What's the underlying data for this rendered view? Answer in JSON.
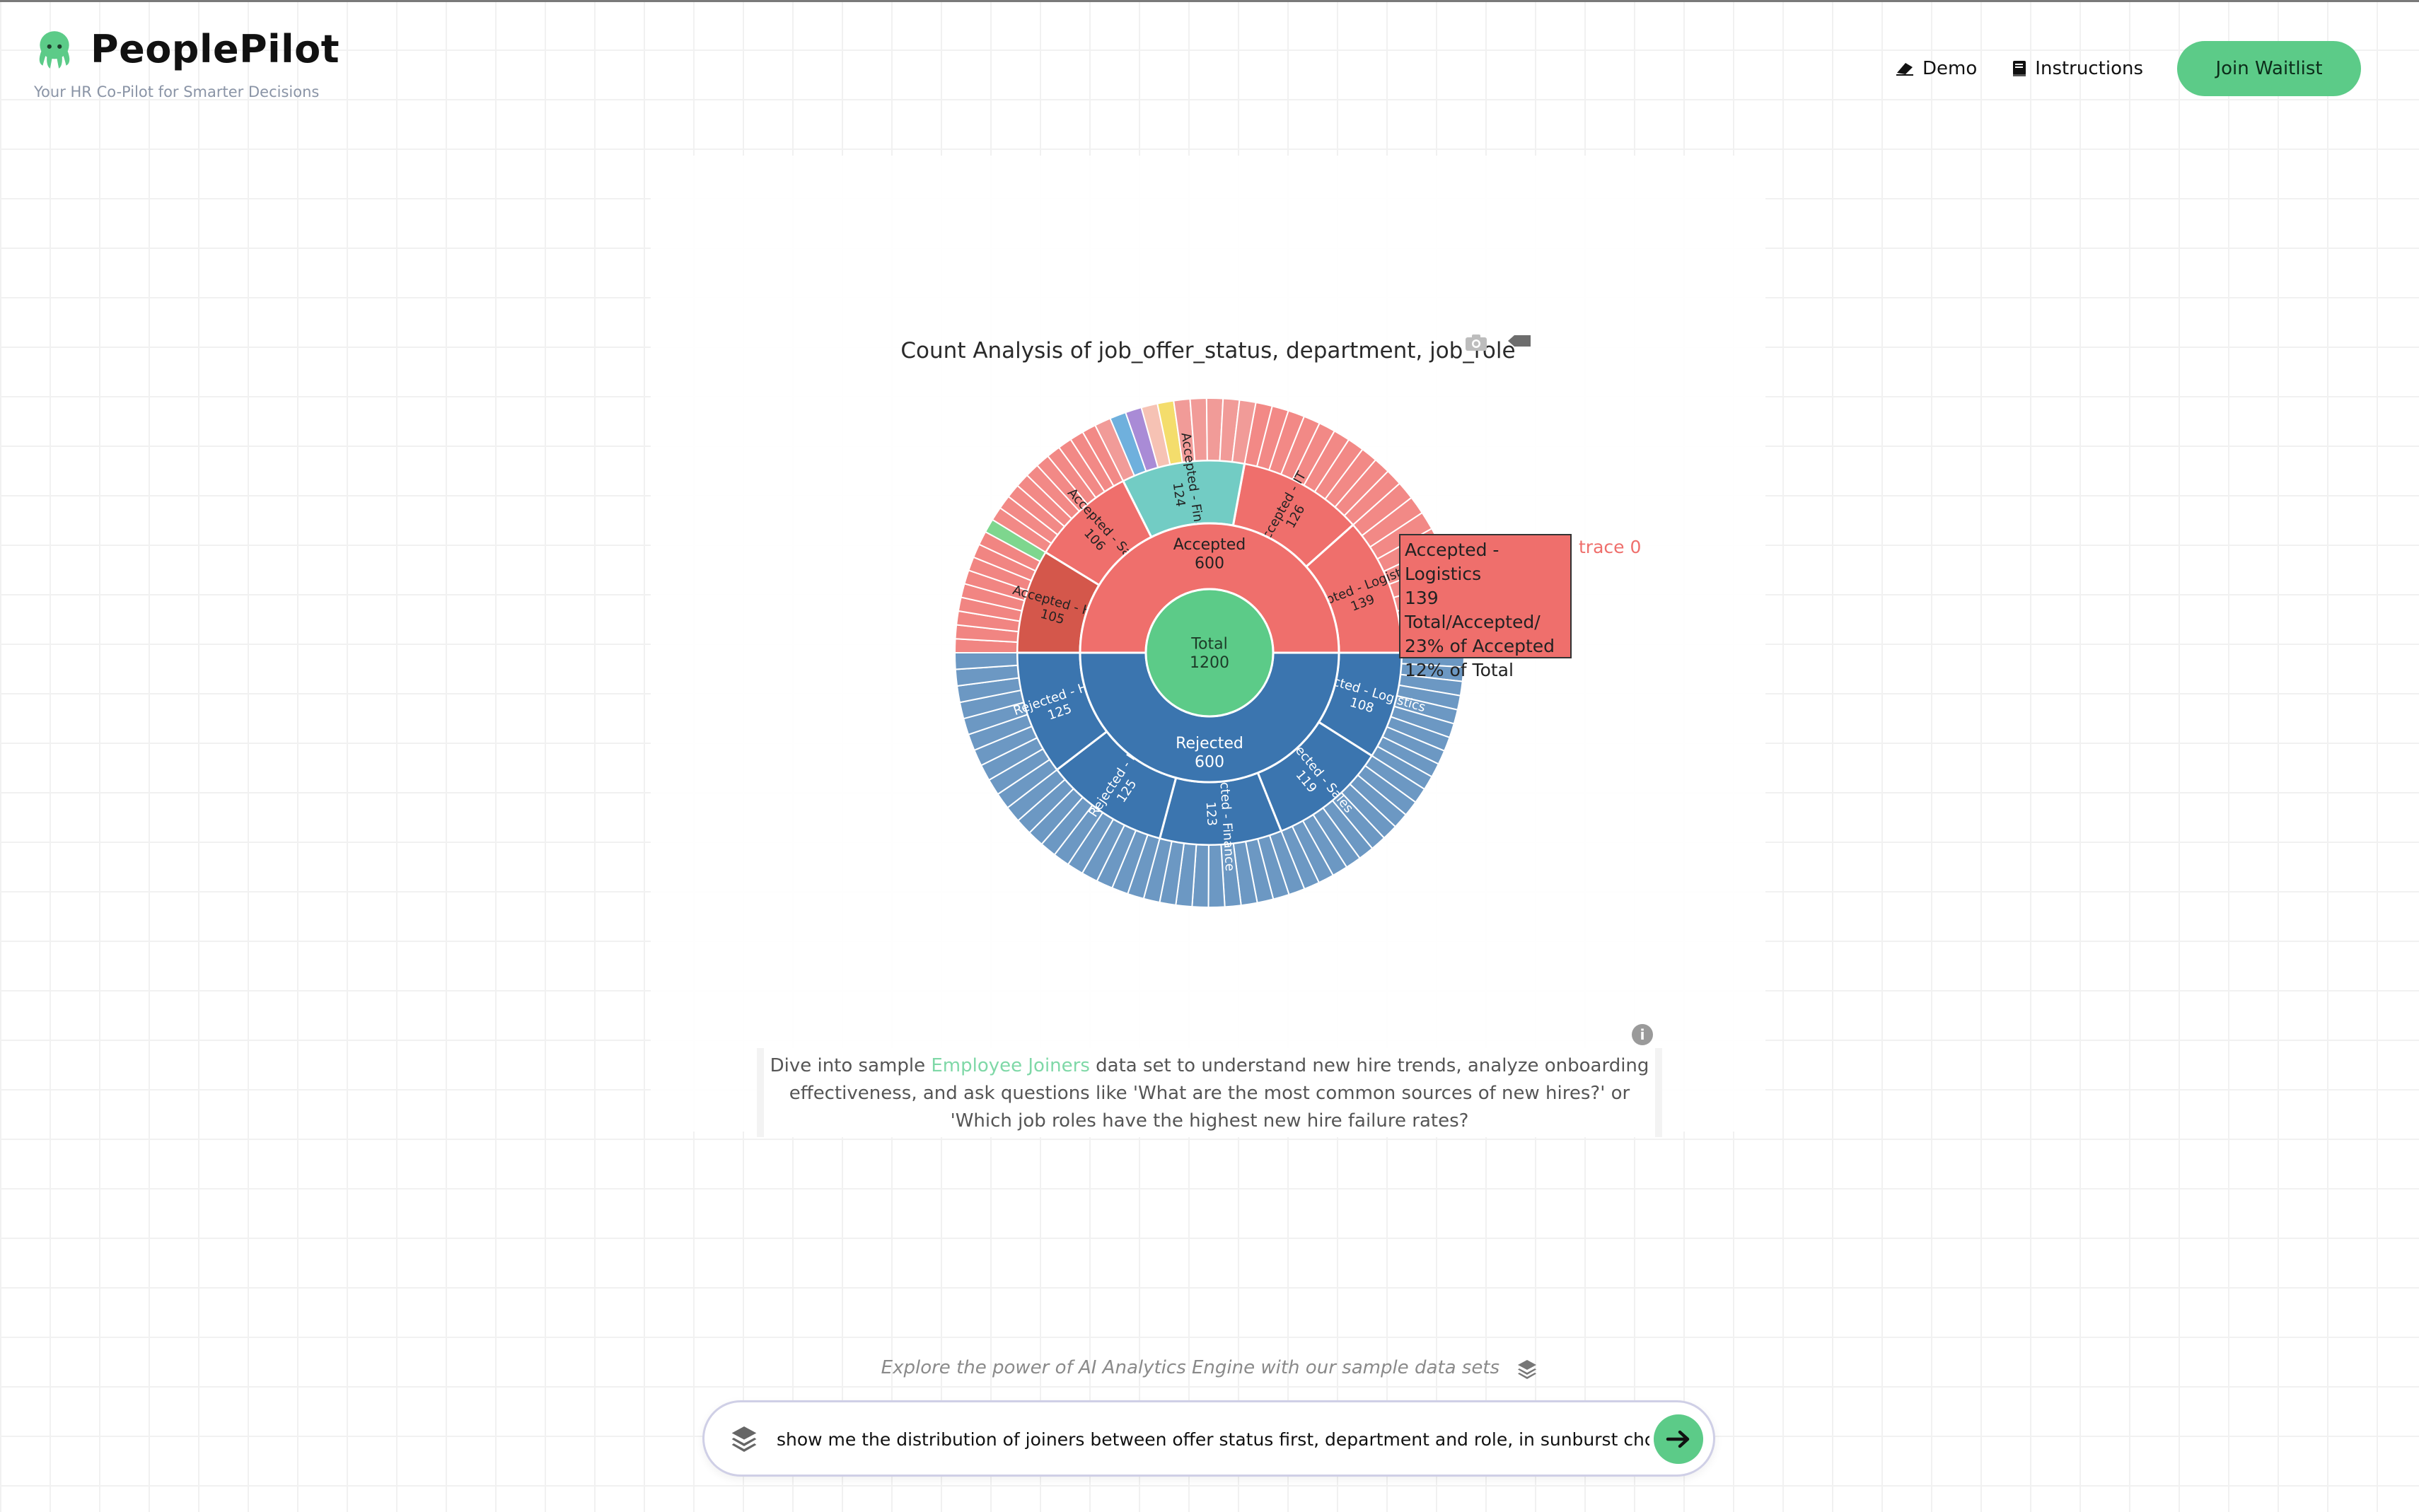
{
  "header": {
    "brand": "PeoplePilot",
    "tagline": "Your HR Co-Pilot for Smarter Decisions",
    "nav": {
      "demo": "Demo",
      "instructions": "Instructions",
      "join": "Join Waitlist"
    }
  },
  "chart_data": {
    "type": "sunburst",
    "title": "Count Analysis of job_offer_status, department, job_role",
    "root": {
      "label": "Total",
      "value": 1200
    },
    "status": [
      {
        "label": "Accepted",
        "value": 600
      },
      {
        "label": "Rejected",
        "value": 600
      }
    ],
    "departments": [
      {
        "label": "Accepted - Logistics",
        "value": 139
      },
      {
        "label": "Accepted - IT",
        "value": 126
      },
      {
        "label": "Accepted - Finance",
        "value": 124
      },
      {
        "label": "Accepted - Sales",
        "value": 106
      },
      {
        "label": "Accepted - HR",
        "value": 105
      },
      {
        "label": "Rejected - Logistics",
        "value": 108
      },
      {
        "label": "Rejected - Sales",
        "value": 119
      },
      {
        "label": "Rejected - Finance",
        "value": 123
      },
      {
        "label": "Rejected - IT",
        "value": 125
      },
      {
        "label": "Rejected - HR",
        "value": 125
      }
    ],
    "colors": {
      "root": "#5ccb88",
      "accepted": "#ef6f6c",
      "rejected": "#3b75af",
      "finance": "#72ccc4",
      "hr": "#d4574b"
    }
  },
  "tooltip": {
    "title": "Accepted - Logistics",
    "value": "139",
    "path": "Total/Accepted/",
    "pct_parent": "23% of Accepted",
    "pct_total": "12% of Total",
    "trace": "trace 0"
  },
  "description": {
    "before": "Dive into sample ",
    "link": "Employee Joiners",
    "after": " data set to understand new hire trends, analyze onboarding effectiveness, and ask questions like 'What are the most common sources of new hires?' or 'Which job roles have the highest new hire failure rates?"
  },
  "explore_text": "Explore the power of AI Analytics Engine with our sample data sets",
  "query": {
    "value": "show me the distribution of joiners between offer status first, department and role, in sunburst chc"
  }
}
